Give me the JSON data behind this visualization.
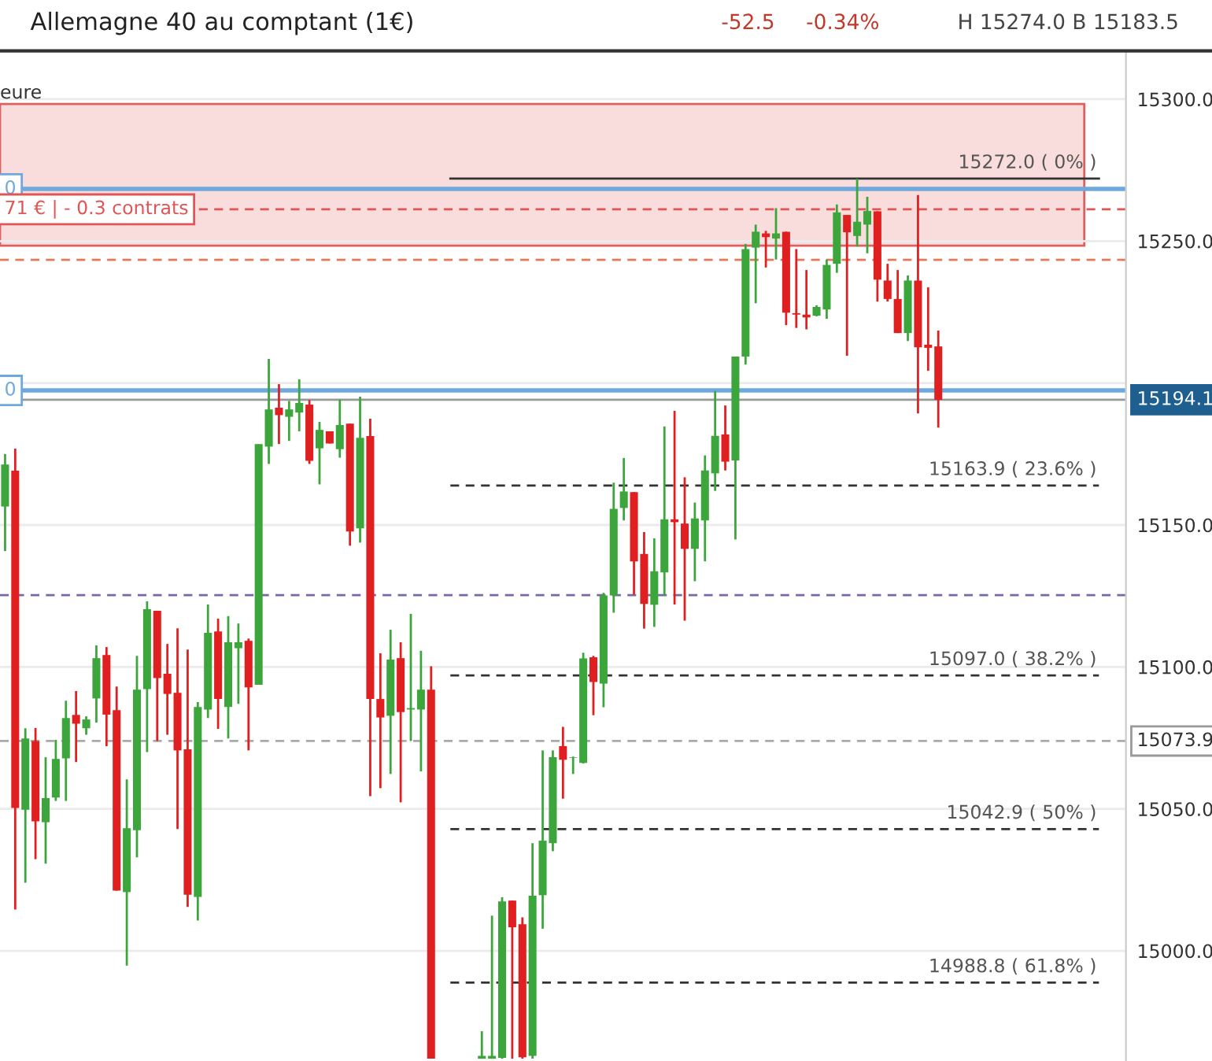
{
  "chart_data": {
    "type": "candlestick",
    "title": "Allemagne 40 au comptant (1€)",
    "annotations": [
      "-52.5",
      "-0.34%",
      "H 15274.0 B 15183.5",
      "eure",
      {
        "text": "0",
        "y": 15268.4
      },
      {
        "text": "0",
        "y": 15197.4
      },
      {
        "text": "71 € | - 0.3 contrats",
        "y": 15261.2
      }
    ],
    "categories": [
      null,
      null,
      null,
      null,
      null,
      null,
      null,
      null,
      null,
      null,
      null,
      null,
      null,
      null,
      null,
      null,
      null,
      null,
      null,
      null,
      null,
      null,
      null,
      null,
      null,
      null,
      null,
      null,
      null,
      null,
      null,
      null,
      null,
      null,
      null,
      null,
      null,
      null,
      null,
      null,
      null,
      null,
      null,
      null,
      null,
      null,
      null,
      null,
      null,
      null,
      null,
      null,
      null,
      null,
      null,
      null,
      null,
      null,
      null,
      null,
      null,
      null,
      null,
      null,
      null,
      null,
      null,
      null,
      null,
      null,
      null,
      null,
      null,
      null,
      null,
      null,
      null,
      null,
      null,
      null,
      null,
      null,
      null,
      null,
      null,
      null,
      null,
      null,
      null,
      null,
      null,
      null,
      null,
      null,
      null,
      null,
      null,
      null,
      null,
      null,
      null,
      null,
      null,
      null,
      null,
      null,
      null,
      null,
      null,
      null,
      null
    ],
    "ohlc": [
      [
        15156.5,
        15175.0,
        15140.8,
        15171.3
      ],
      [
        15169.1,
        15176.9,
        15014.6,
        15050.3
      ],
      [
        15049.7,
        15078.4,
        15024.0,
        15074.8
      ],
      [
        15073.9,
        15078.5,
        15032.3,
        15045.6
      ],
      [
        15045.3,
        15068.2,
        15030.7,
        15053.8
      ],
      [
        15054.0,
        15074.3,
        15052.8,
        15067.6
      ],
      [
        15067.8,
        15088.1,
        15052.8,
        15082.0
      ],
      [
        15083.1,
        15091.5,
        15066.5,
        15080.0
      ],
      [
        15078.4,
        15082.6,
        15076.1,
        15081.5
      ],
      [
        15088.9,
        15107.6,
        15080.4,
        15103.1
      ],
      [
        15104.2,
        15107.0,
        15072.1,
        15083.2
      ],
      [
        15084.8,
        15093.1,
        15021.2,
        15021.2
      ],
      [
        15020.7,
        15060.4,
        14994.8,
        15043.2
      ],
      [
        15042.5,
        15103.9,
        15032.9,
        15092.0
      ],
      [
        15092.2,
        15123.1,
        15070.0,
        15120.3
      ],
      [
        15119.8,
        15119.8,
        15073.9,
        15096.1
      ],
      [
        15097.6,
        15108.1,
        15076.1,
        15090.5
      ],
      [
        15090.9,
        15113.6,
        15042.9,
        15070.6
      ],
      [
        15071.0,
        15106.1,
        15015.5,
        15019.8
      ],
      [
        15019.0,
        15087.6,
        15010.7,
        15085.9
      ],
      [
        15085.0,
        15122.0,
        15082.0,
        15112.0
      ],
      [
        15112.5,
        15117.0,
        15078.2,
        15088.7
      ],
      [
        15085.9,
        15117.9,
        15074.8,
        15108.7
      ],
      [
        15106.6,
        15115.3,
        15087.0,
        15108.7
      ],
      [
        15109.2,
        15110.0,
        15070.6,
        15092.8
      ],
      [
        15093.7,
        15178.5,
        15093.7,
        15178.5
      ],
      [
        15177.6,
        15208.5,
        15171.5,
        15190.7
      ],
      [
        15191.3,
        15199.6,
        15178.5,
        15188.7
      ],
      [
        15188.1,
        15193.7,
        15179.6,
        15190.7
      ],
      [
        15189.6,
        15201.3,
        15183.0,
        15193.0
      ],
      [
        15192.4,
        15194.0,
        15171.5,
        15172.6
      ],
      [
        15177.0,
        15186.3,
        15164.3,
        15183.5
      ],
      [
        15183.0,
        15183.0,
        15178.7,
        15178.7
      ],
      [
        15176.7,
        15194.2,
        15173.7,
        15185.2
      ],
      [
        15185.7,
        15185.7,
        15142.7,
        15147.7
      ],
      [
        15148.8,
        15195.2,
        15143.8,
        15180.7
      ],
      [
        15181.3,
        15187.4,
        15054.5,
        15088.7
      ],
      [
        15088.7,
        15104.8,
        15057.3,
        15082.2
      ],
      [
        15082.8,
        15113.1,
        15062.3,
        15102.6
      ],
      [
        15103.1,
        15108.7,
        15052.3,
        15084.1
      ],
      [
        15085.0,
        15118.7,
        15073.9,
        15085.5
      ],
      [
        15085.0,
        15105.7,
        15063.2,
        15092.0
      ],
      [
        15092.0,
        15100.2,
        14962.0,
        14962.0
      ],
      null,
      null,
      null,
      null,
      [
        14962.0,
        14971.7,
        14962.0,
        14963.0
      ],
      [
        14962.0,
        15012.4,
        14962.0,
        14963.0
      ],
      [
        14962.3,
        15018.9,
        14962.0,
        15017.4
      ],
      [
        15017.7,
        15017.7,
        14962.0,
        15008.3
      ],
      [
        15009.4,
        15011.8,
        14962.0,
        14962.5
      ],
      [
        14963.0,
        15037.9,
        14962.0,
        15019.4
      ],
      [
        15019.6,
        15070.6,
        15007.8,
        15038.8
      ],
      [
        15037.9,
        15070.6,
        15035.1,
        15068.2
      ],
      [
        15072.1,
        15078.9,
        15053.6,
        15067.3
      ],
      [
        15068.0,
        15068.4,
        15062.3,
        15068.2
      ],
      [
        15066.2,
        15105.0,
        15066.0,
        15103.0
      ],
      [
        15103.4,
        15103.9,
        15083.0,
        15094.7
      ],
      [
        15094.1,
        15126.1,
        15085.8,
        15125.2
      ],
      [
        15125.2,
        15164.9,
        15119.1,
        15155.7
      ],
      [
        15156.0,
        15173.6,
        15151.6,
        15161.8
      ],
      [
        15161.6,
        15161.6,
        15125.5,
        15137.2
      ],
      [
        15139.8,
        15147.5,
        15113.5,
        15122.2
      ],
      [
        15121.9,
        15145.3,
        15114.1,
        15133.7
      ],
      [
        15133.3,
        15184.7,
        15125.2,
        15152.0
      ],
      [
        15152.0,
        15190.2,
        15122.0,
        15151.0
      ],
      [
        15150.5,
        15166.8,
        15116.3,
        15141.6
      ],
      [
        15141.6,
        15157.9,
        15130.2,
        15152.3
      ],
      [
        15151.6,
        15174.5,
        15137.2,
        15169.2
      ],
      [
        15168.2,
        15197.2,
        15162.0,
        15181.4
      ],
      [
        15181.9,
        15192.1,
        15169.2,
        15172.3
      ],
      [
        15172.7,
        15209.3,
        15144.9,
        15209.3
      ],
      [
        15209.3,
        15249.0,
        15206.5,
        15247.2
      ],
      [
        15247.7,
        15255.8,
        15228.1,
        15253.3
      ],
      [
        15252.7,
        15253.6,
        15240.7,
        15251.4
      ],
      [
        15250.9,
        15261.6,
        15243.5,
        15252.7
      ],
      [
        15253.3,
        15253.3,
        15220.4,
        15224.8
      ],
      [
        15224.6,
        15247.2,
        15219.4,
        15224.1
      ],
      [
        15224.1,
        15239.8,
        15218.9,
        15223.1
      ],
      [
        15223.7,
        15227.4,
        15223.5,
        15226.8
      ],
      [
        15225.9,
        15243.5,
        15222.6,
        15241.6
      ],
      [
        15242.0,
        15262.9,
        15238.8,
        15260.1
      ],
      [
        15259.2,
        15259.2,
        15209.6,
        15253.1
      ],
      [
        15251.8,
        15272.0,
        15248.1,
        15256.8
      ],
      [
        15255.8,
        15265.6,
        15245.7,
        15260.6
      ],
      [
        15260.5,
        15260.5,
        15228.7,
        15236.4
      ],
      [
        15236.1,
        15242.0,
        15228.7,
        15229.6
      ],
      [
        15229.6,
        15239.8,
        15217.6,
        15217.6
      ],
      [
        15217.6,
        15237.9,
        15214.8,
        15236.1
      ],
      [
        15236.1,
        15266.2,
        15189.3,
        15212.6
      ],
      [
        15213.5,
        15233.7,
        15204.3,
        15212.4
      ],
      [
        15212.9,
        15218.5,
        15184.3,
        15194.1
      ],
      null,
      null,
      null,
      null,
      null,
      null,
      null,
      null,
      null,
      null,
      null,
      null,
      null,
      null,
      null,
      null,
      null,
      null
    ],
    "colors": [
      "#3ca63c",
      "#e02020",
      "#3ca63c",
      "#e02020",
      "#3ca63c",
      "#3ca63c",
      "#3ca63c",
      "#e02020",
      "#3ca63c",
      "#3ca63c",
      "#e02020",
      "#e02020",
      "#3ca63c",
      "#3ca63c",
      "#3ca63c",
      "#e02020",
      "#e02020",
      "#e02020",
      "#e02020",
      "#3ca63c",
      "#3ca63c",
      "#e02020",
      "#3ca63c",
      "#3ca63c",
      "#e02020",
      "#3ca63c",
      "#3ca63c",
      "#e02020",
      "#3ca63c",
      "#3ca63c",
      "#e02020",
      "#3ca63c",
      "#e02020",
      "#3ca63c",
      "#e02020",
      "#3ca63c",
      "#e02020",
      "#e02020",
      "#3ca63c",
      "#e02020",
      "#3ca63c",
      "#3ca63c",
      "#e02020",
      null,
      null,
      null,
      null,
      "#3ca63c",
      "#3ca63c",
      "#3ca63c",
      "#e02020",
      "#e02020",
      "#3ca63c",
      "#3ca63c",
      "#3ca63c",
      "#e02020",
      "#3ca63c",
      "#3ca63c",
      "#e02020",
      "#3ca63c",
      "#3ca63c",
      "#3ca63c",
      "#e02020",
      "#e02020",
      "#3ca63c",
      "#3ca63c",
      "#e02020",
      "#e02020",
      "#3ca63c",
      "#3ca63c",
      "#3ca63c",
      "#e02020",
      "#3ca63c",
      "#3ca63c",
      "#3ca63c",
      "#e02020",
      "#3ca63c",
      "#e02020",
      "#e02020",
      "#e02020",
      "#3ca63c",
      "#3ca63c",
      "#3ca63c",
      "#e02020",
      "#3ca63c",
      "#3ca63c",
      "#e02020",
      "#e02020",
      "#e02020",
      "#3ca63c",
      "#e02020",
      "#e02020",
      "#e02020",
      null,
      null,
      null,
      null,
      null,
      null,
      null,
      null,
      null,
      null,
      null,
      null,
      null,
      null,
      null,
      null,
      null,
      null
    ],
    "ylim": [
      14961.2,
      15316.6
    ],
    "yticks": [
      {
        "value": 15000,
        "label": "15000.0"
      },
      {
        "value": 15050,
        "label": "15050.0"
      },
      {
        "value": 15100,
        "label": "15100.0"
      },
      {
        "value": 15150,
        "label": "15150.0"
      },
      {
        "value": 15200,
        "label": null
      },
      {
        "value": 15250,
        "label": "15250.0"
      },
      {
        "value": 15300,
        "label": "15300.0"
      }
    ],
    "tick_labels": "y",
    "grid": "y",
    "bands": [
      {
        "axis": "y",
        "from": 15248.4,
        "to": 15298.3,
        "color": "#f9dcdc"
      }
    ],
    "ref_lines": [
      {
        "axis": "y",
        "value": 15272.0,
        "label": "15272.0 ( 0% )",
        "color": "#333333",
        "line_style": "solid"
      },
      {
        "axis": "y",
        "value": 15163.9,
        "label": "15163.9 ( 23.6% )",
        "color": "#333333",
        "line_style": "dashed"
      },
      {
        "axis": "y",
        "value": 15097.0,
        "label": "15097.0 ( 38.2% )",
        "color": "#333333",
        "line_style": "dashed"
      },
      {
        "axis": "y",
        "value": 15042.9,
        "label": "15042.9 ( 50% )",
        "color": "#333333",
        "line_style": "dashed"
      },
      {
        "axis": "y",
        "value": 14988.8,
        "label": "14988.8 ( 61.8% )",
        "color": "#333333",
        "line_style": "dashed"
      },
      {
        "axis": "y",
        "value": 15268.4,
        "color": "#6fa8dc",
        "line_style": "solid"
      },
      {
        "axis": "y",
        "value": 15197.4,
        "color": "#6fa8dc",
        "line_style": "solid"
      },
      {
        "axis": "y",
        "value": 15261.2,
        "color": "#e05555",
        "line_style": "dashed"
      },
      {
        "axis": "y",
        "value": 15243.4,
        "color": "#e8785a",
        "line_style": "dashed"
      },
      {
        "axis": "y",
        "value": 15125.3,
        "color": "#7a66a8",
        "line_style": "dashed"
      },
      {
        "axis": "y",
        "value": 15073.9,
        "label": "15073.9",
        "color": "#aaaaaa",
        "line_style": "dashed"
      },
      {
        "axis": "y",
        "value": 15194.1,
        "label": "15194.1",
        "color": "#999999",
        "line_style": "solid"
      }
    ]
  }
}
